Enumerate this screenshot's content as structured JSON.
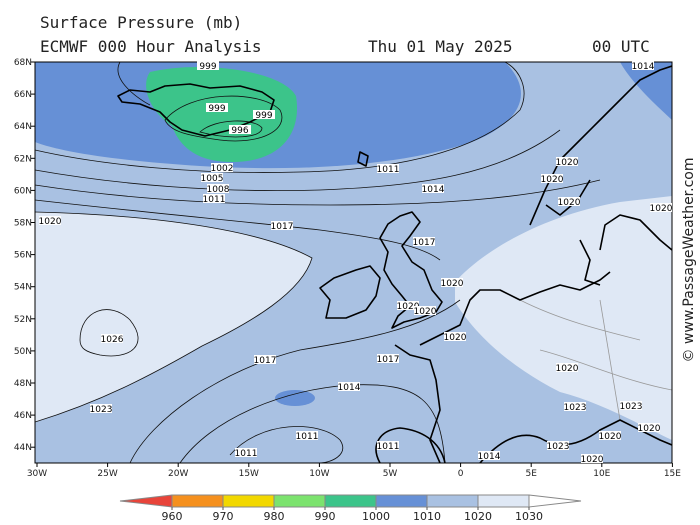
{
  "header": {
    "title": "Surface Pressure (mb)",
    "model": "ECMWF 000 Hour Analysis",
    "date": "Thu 01 May 2025",
    "time": "00 UTC"
  },
  "map": {
    "lat_labels": [
      "68N",
      "66N",
      "64N",
      "62N",
      "60N",
      "58N",
      "56N",
      "54N",
      "52N",
      "50N",
      "48N",
      "46N",
      "44N"
    ],
    "lon_labels": [
      "30W",
      "25W",
      "20W",
      "15W",
      "10W",
      "5W",
      "0",
      "5E",
      "10E",
      "15E"
    ],
    "contour_labels": [
      "999",
      "999",
      "999",
      "996",
      "1002",
      "1005",
      "1008",
      "1011",
      "1011",
      "1014",
      "1017",
      "1020",
      "1017",
      "1020",
      "1020",
      "1020",
      "1020",
      "1026",
      "1017",
      "1017",
      "1014",
      "1023",
      "1011",
      "1011",
      "1011",
      "1014",
      "1020",
      "1020",
      "1020",
      "1020",
      "1020",
      "1023",
      "1023",
      "1020",
      "1023",
      "1014",
      "1020",
      "1020"
    ]
  },
  "colorbar": {
    "ticks": [
      960,
      970,
      980,
      990,
      1000,
      1010,
      1020,
      1030
    ],
    "colors": [
      "#e8443a",
      "#f5901e",
      "#f2d800",
      "#7ce36e",
      "#3cc48a",
      "#6690d6",
      "#a9c1e2",
      "#dfe8f5",
      "#ffffff"
    ]
  },
  "copyright": "© www.PassageWeather.com"
}
